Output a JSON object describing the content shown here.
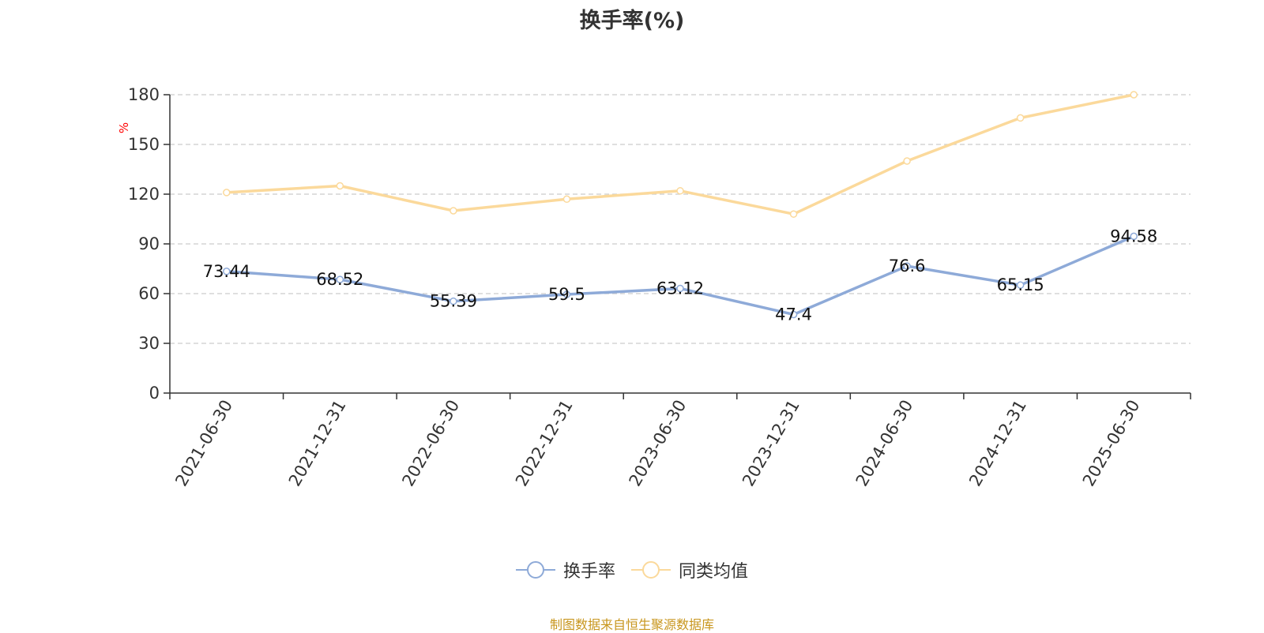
{
  "chart_data": {
    "type": "line",
    "title": "换手率(%)",
    "ylabel": "%",
    "ylim": [
      0,
      180
    ],
    "yticks": [
      0,
      30,
      60,
      90,
      120,
      150,
      180
    ],
    "grid": true,
    "legend_position": "bottom",
    "categories": [
      "2021-06-30",
      "2021-12-31",
      "2022-06-30",
      "2022-12-31",
      "2023-06-30",
      "2023-12-31",
      "2024-06-30",
      "2024-12-31",
      "2025-06-30"
    ],
    "series": [
      {
        "name": "换手率",
        "color": "#8eaad8",
        "values": [
          73.44,
          68.52,
          55.39,
          59.5,
          63.12,
          47.4,
          76.6,
          65.15,
          94.58
        ],
        "labels": [
          "73.44",
          "68.52",
          "55.39",
          "59.5",
          "63.12",
          "47.4",
          "76.6",
          "65.15",
          "94.58"
        ],
        "show_labels": true
      },
      {
        "name": "同类均值",
        "color": "#fbd99b",
        "values": [
          121,
          125,
          110,
          117,
          122,
          108,
          140,
          166,
          180
        ],
        "show_labels": false
      }
    ]
  },
  "legend": {
    "items": [
      {
        "label": "换手率",
        "color": "#8eaad8"
      },
      {
        "label": "同类均值",
        "color": "#fbd99b"
      }
    ]
  },
  "axis_label_color": "#ff0000",
  "source": "制图数据来自恒生聚源数据库"
}
